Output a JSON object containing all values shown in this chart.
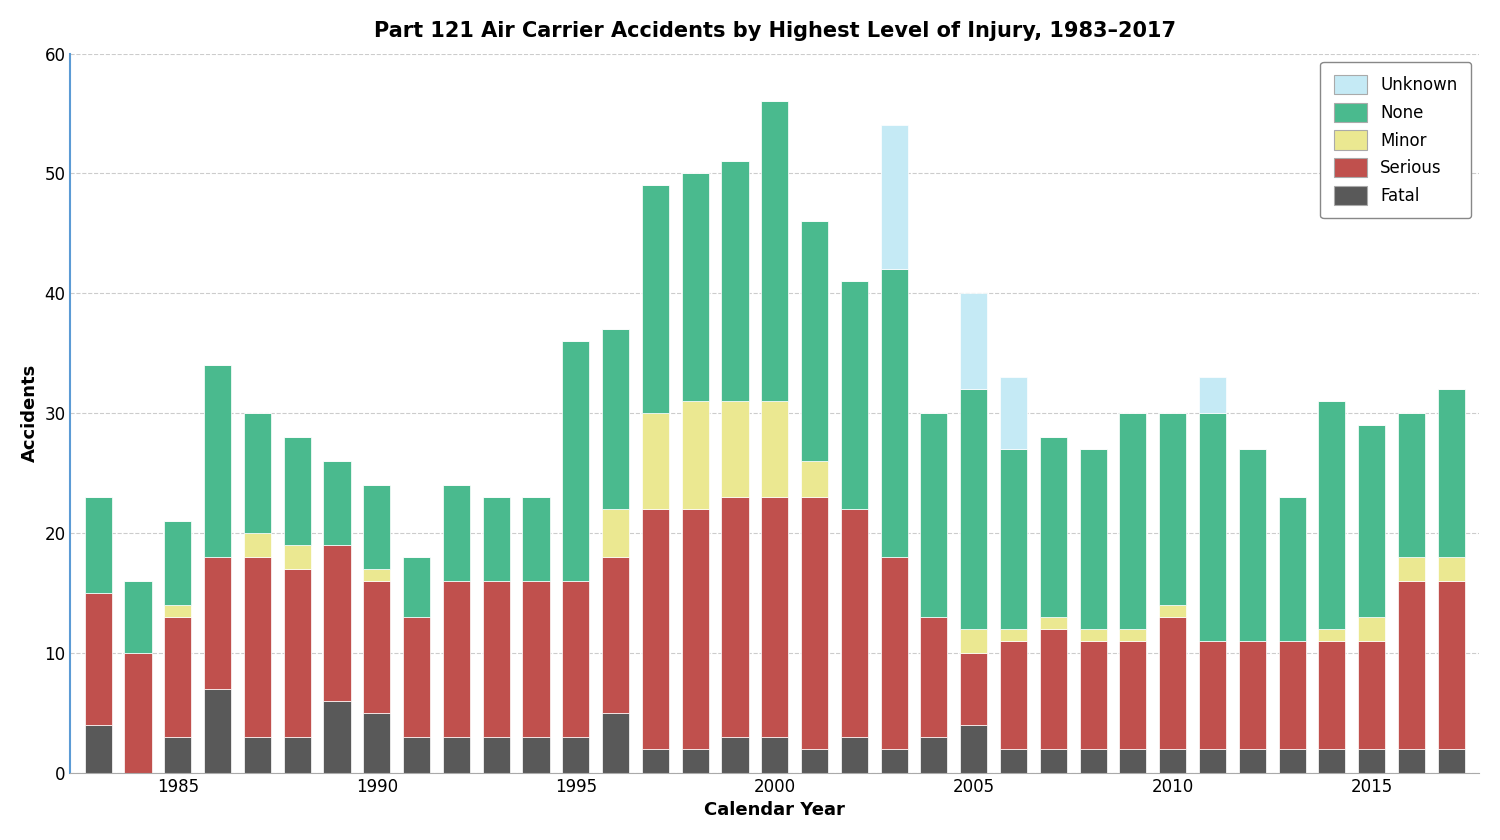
{
  "title": "Part 121 Air Carrier Accidents by Highest Level of Injury, 1983–2017",
  "xlabel": "Calendar Year",
  "ylabel": "Accidents",
  "years": [
    1983,
    1984,
    1985,
    1986,
    1987,
    1988,
    1989,
    1990,
    1991,
    1992,
    1993,
    1994,
    1995,
    1996,
    1997,
    1998,
    1999,
    2000,
    2001,
    2002,
    2003,
    2004,
    2005,
    2006,
    2007,
    2008,
    2009,
    2010,
    2011,
    2012,
    2013,
    2014,
    2015,
    2016,
    2017
  ],
  "fatal": [
    4,
    0,
    3,
    7,
    3,
    3,
    6,
    5,
    3,
    3,
    3,
    3,
    3,
    5,
    2,
    2,
    3,
    3,
    2,
    3,
    2,
    3,
    4,
    2,
    2,
    2,
    2,
    2,
    2,
    2,
    2,
    2,
    2,
    2,
    2
  ],
  "serious": [
    11,
    10,
    10,
    11,
    15,
    14,
    13,
    11,
    10,
    13,
    13,
    13,
    13,
    13,
    20,
    20,
    20,
    20,
    21,
    19,
    16,
    10,
    6,
    9,
    10,
    9,
    9,
    11,
    9,
    9,
    9,
    9,
    9,
    14,
    14
  ],
  "minor": [
    0,
    0,
    1,
    0,
    2,
    2,
    0,
    1,
    0,
    0,
    0,
    0,
    0,
    4,
    8,
    9,
    8,
    8,
    3,
    0,
    0,
    0,
    2,
    1,
    1,
    1,
    1,
    1,
    0,
    0,
    0,
    1,
    2,
    2,
    2
  ],
  "none": [
    8,
    6,
    7,
    16,
    10,
    9,
    7,
    7,
    5,
    8,
    7,
    7,
    20,
    15,
    19,
    19,
    20,
    25,
    20,
    19,
    24,
    17,
    20,
    15,
    15,
    15,
    18,
    16,
    19,
    16,
    12,
    19,
    16,
    12,
    14
  ],
  "unknown": [
    0,
    0,
    0,
    0,
    0,
    0,
    0,
    0,
    0,
    0,
    0,
    0,
    0,
    0,
    0,
    0,
    0,
    0,
    0,
    0,
    12,
    0,
    8,
    6,
    0,
    0,
    0,
    0,
    3,
    0,
    0,
    0,
    0,
    0,
    0
  ],
  "colors": {
    "fatal": "#595959",
    "serious": "#c0504d",
    "minor": "#ebe891",
    "none": "#4aba8e",
    "unknown": "#c5eaf5"
  },
  "ylim": [
    0,
    60
  ],
  "yticks": [
    0,
    10,
    20,
    30,
    40,
    50,
    60
  ],
  "background_color": "#ffffff",
  "plot_bg_color": "#ffffff",
  "title_fontsize": 15,
  "axis_fontsize": 13,
  "tick_fontsize": 12,
  "legend_fontsize": 12
}
